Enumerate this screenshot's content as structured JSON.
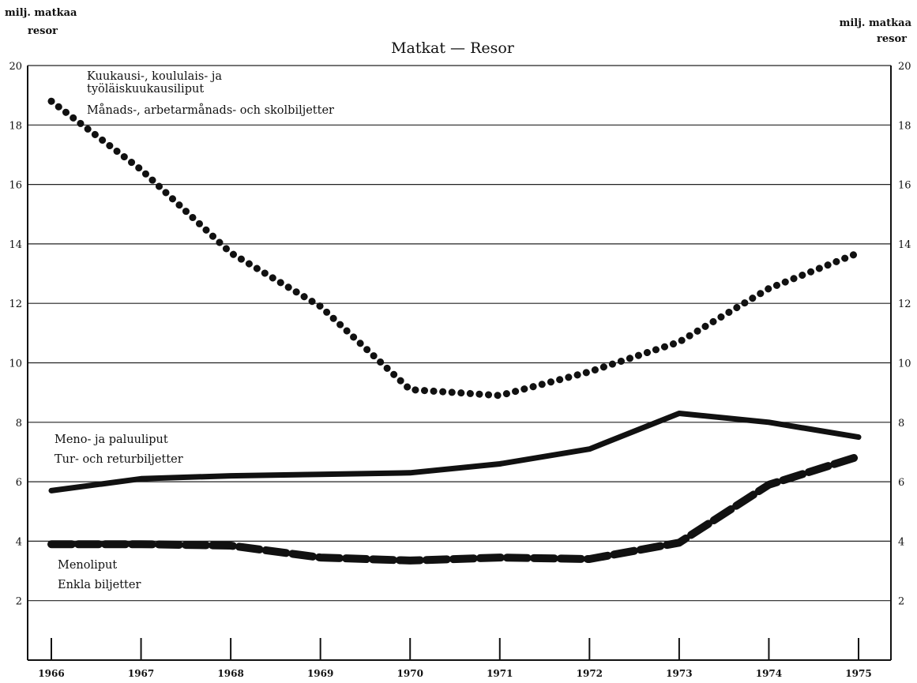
{
  "chart_data": {
    "type": "line",
    "title": "Matkat — Resor",
    "ylabel_left": [
      "milj. matkaa",
      "resor"
    ],
    "ylabel_right": [
      "milj. matkaa",
      "resor"
    ],
    "x": [
      1966,
      1967,
      1968,
      1969,
      1970,
      1971,
      1972,
      1973,
      1974,
      1975
    ],
    "x_tick_labels": [
      "1966",
      "1967",
      "1968",
      "1969",
      "1970",
      "1971",
      "1972",
      "1973",
      "1974",
      "1975"
    ],
    "ylim": [
      0,
      20
    ],
    "y_ticks": [
      2,
      4,
      6,
      8,
      10,
      12,
      14,
      16,
      18,
      20
    ],
    "y_tick_labels": [
      "2",
      "4",
      "6",
      "8",
      "10",
      "12",
      "14",
      "16",
      "18",
      "20"
    ],
    "grid": "horizontal",
    "legend": "none",
    "series": [
      {
        "style": "dotted",
        "label_lines": [
          "Kuukausi-, koululais- ja",
          "työläiskuukausiliput",
          "Månads-, arbetarmånads- och skolbiljetter"
        ],
        "values": [
          18.8,
          16.5,
          13.7,
          11.9,
          9.1,
          8.9,
          9.7,
          10.7,
          12.5,
          13.7
        ]
      },
      {
        "style": "solid",
        "label_lines": [
          "Meno- ja paluuliput",
          "Tur- och returbiljetter"
        ],
        "values": [
          5.7,
          6.1,
          6.2,
          6.25,
          6.3,
          6.6,
          7.1,
          8.3,
          8.0,
          7.5
        ]
      },
      {
        "style": "dashed",
        "label_lines": [
          "Menoliput",
          "Enkla biljetter"
        ],
        "values": [
          3.9,
          3.9,
          3.85,
          3.45,
          3.35,
          3.45,
          3.4,
          3.95,
          5.9,
          6.85
        ]
      }
    ]
  }
}
